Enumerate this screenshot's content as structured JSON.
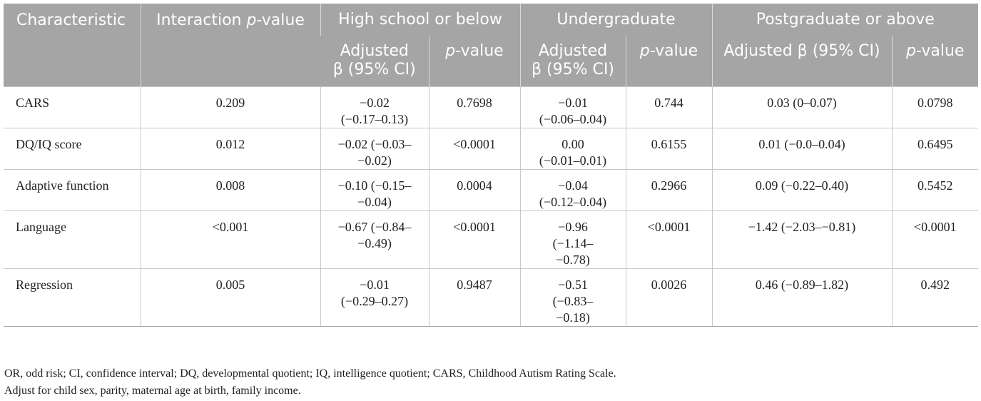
{
  "header": {
    "characteristic": "Characteristic",
    "interaction_pre": "Interaction ",
    "interaction_p": "p",
    "interaction_post": "-value",
    "groups": [
      "High school or below",
      "Undergraduate",
      "Postgraduate or above"
    ],
    "adjusted_line1": "Adjusted",
    "adjusted_line2": "β (95% CI)",
    "adjusted_full": "Adjusted β (95% CI)",
    "p": "p",
    "pvalue_suffix": "-value"
  },
  "rows": [
    {
      "name": "CARS",
      "interaction": "0.209",
      "hs_beta_1": "−0.02",
      "hs_beta_2": "(−0.17–0.13)",
      "hs_p": "0.7698",
      "ug_beta_1": "−0.01",
      "ug_beta_2": "(−0.06–0.04)",
      "ug_p": "0.744",
      "pg_beta": "0.03 (0–0.07)",
      "pg_p": "0.0798"
    },
    {
      "name": "DQ/IQ score",
      "interaction": "0.012",
      "hs_beta_1": "−0.02 (−0.03–",
      "hs_beta_2": "−0.02)",
      "hs_p": "<0.0001",
      "ug_beta_1": "0.00",
      "ug_beta_2": "(−0.01–0.01)",
      "ug_p": "0.6155",
      "pg_beta": "0.01 (−0.0–0.04)",
      "pg_p": "0.6495"
    },
    {
      "name": "Adaptive function",
      "interaction": "0.008",
      "hs_beta_1": "−0.10 (−0.15–",
      "hs_beta_2": "−0.04)",
      "hs_p": "0.0004",
      "ug_beta_1": "−0.04",
      "ug_beta_2": "(−0.12–0.04)",
      "ug_p": "0.2966",
      "pg_beta": "0.09 (−0.22–0.40)",
      "pg_p": "0.5452"
    },
    {
      "name": "Language",
      "interaction": "<0.001",
      "hs_beta_1": "−0.67 (−0.84–",
      "hs_beta_2": "−0.49)",
      "hs_p": "<0.0001",
      "ug_beta_1": "−0.96",
      "ug_beta_2": "(−1.14–",
      "ug_beta_3": "−0.78)",
      "ug_p": "<0.0001",
      "pg_beta": "−1.42 (−2.03–−0.81)",
      "pg_p": "<0.0001"
    },
    {
      "name": "Regression",
      "interaction": "0.005",
      "hs_beta_1": "−0.01",
      "hs_beta_2": "(−0.29–0.27)",
      "hs_p": "0.9487",
      "ug_beta_1": "−0.51",
      "ug_beta_2": "(−0.83–",
      "ug_beta_3": "−0.18)",
      "ug_p": "0.0026",
      "pg_beta": "0.46 (−0.89–1.82)",
      "pg_p": "0.492"
    }
  ],
  "footnotes": [
    "OR, odd risk; CI, confidence interval; DQ, developmental quotient; IQ, intelligence quotient; CARS, Childhood Autism Rating Scale.",
    "Adjust for child sex, parity, maternal age at birth, family income."
  ]
}
